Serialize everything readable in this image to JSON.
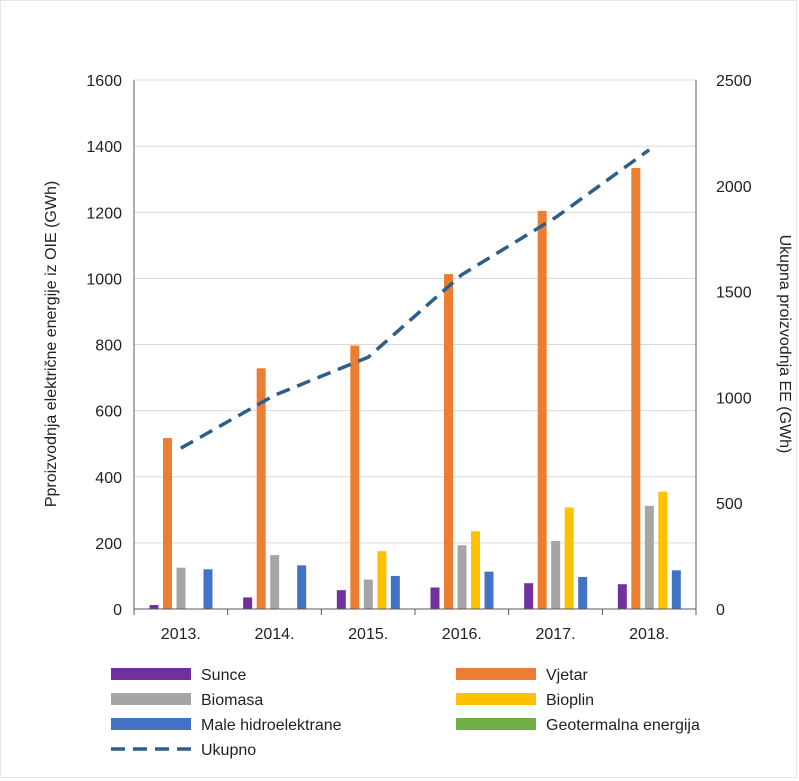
{
  "chart_data": {
    "type": "bar",
    "categories": [
      "2013.",
      "2014.",
      "2015.",
      "2016.",
      "2017.",
      "2018."
    ],
    "ylabel": "Pproizvodnja električne energije iz OIE (GWh)",
    "y2label": "Ukupna proizvodnja EE (GWh)",
    "ylim": [
      0,
      1600
    ],
    "y2lim": [
      0,
      2500
    ],
    "yticks": [
      0,
      200,
      400,
      600,
      800,
      1000,
      1200,
      1400,
      1600
    ],
    "y2ticks": [
      0,
      500,
      1000,
      1500,
      2000,
      2500
    ],
    "grid": true,
    "legend_position": "bottom",
    "series": [
      {
        "name": "Sunce",
        "color": "#7030a0",
        "values": [
          12,
          35,
          57,
          65,
          78,
          75
        ]
      },
      {
        "name": "Vjetar",
        "color": "#ed7d31",
        "values": [
          517,
          728,
          797,
          1013,
          1204,
          1334
        ]
      },
      {
        "name": "Biomasa",
        "color": "#a5a5a5",
        "values": [
          125,
          163,
          89,
          193,
          206,
          312
        ]
      },
      {
        "name": "Bioplin",
        "color": "#ffc000",
        "values": [
          0,
          0,
          175,
          235,
          307,
          355
        ]
      },
      {
        "name": "Male hidroelektrane",
        "color": "#4472c4",
        "values": [
          120,
          132,
          100,
          113,
          97,
          117
        ]
      },
      {
        "name": "Geotermalna energija",
        "color": "#70ad47",
        "values": [
          0,
          0,
          0,
          0,
          0,
          0
        ]
      }
    ],
    "line_series": {
      "name": "Ukupno",
      "color": "#2e5f8a",
      "axis": "secondary",
      "values": [
        760,
        1010,
        1190,
        1580,
        1850,
        2170
      ]
    }
  }
}
